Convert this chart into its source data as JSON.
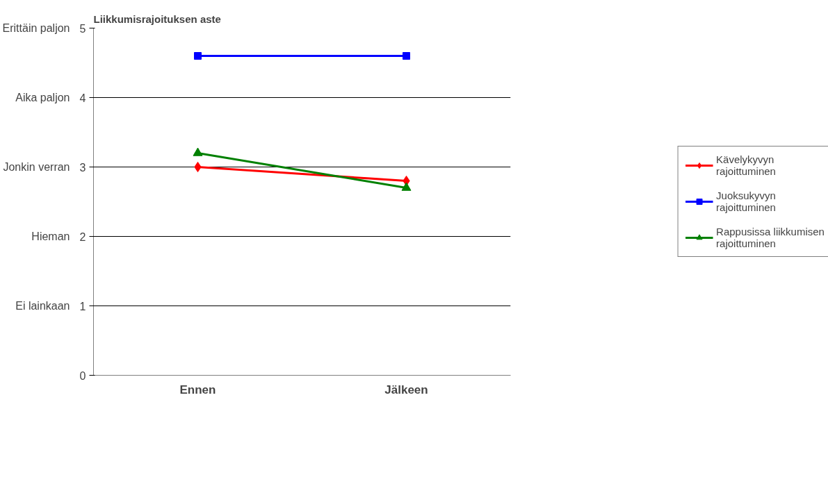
{
  "chart_data": {
    "type": "line",
    "title": "Liikkumisrajoituksen aste",
    "categories": [
      "Ennen",
      "Jälkeen"
    ],
    "series": [
      {
        "name": "Kävelykyvyn rajoittuminen",
        "color": "#ff0000",
        "values": [
          3.0,
          2.8
        ],
        "marker": "diamond"
      },
      {
        "name": "Juoksukyvyn rajoittuminen",
        "color": "#0000ff",
        "values": [
          4.6,
          4.6
        ],
        "marker": "square"
      },
      {
        "name": "Rappusissa liikkumisen rajoittuminen",
        "color": "#008000",
        "values": [
          3.2,
          2.7
        ],
        "marker": "triangle"
      }
    ],
    "ylim": [
      0,
      5
    ],
    "yticks": [
      0,
      1,
      2,
      3,
      4,
      5
    ],
    "annotations": [
      "Erittäin paljon",
      "Aika paljon",
      "Jonkin verran",
      "Hieman",
      "Ei lainkaan"
    ],
    "grid": "y",
    "legend": "right",
    "line_style": "solid"
  }
}
